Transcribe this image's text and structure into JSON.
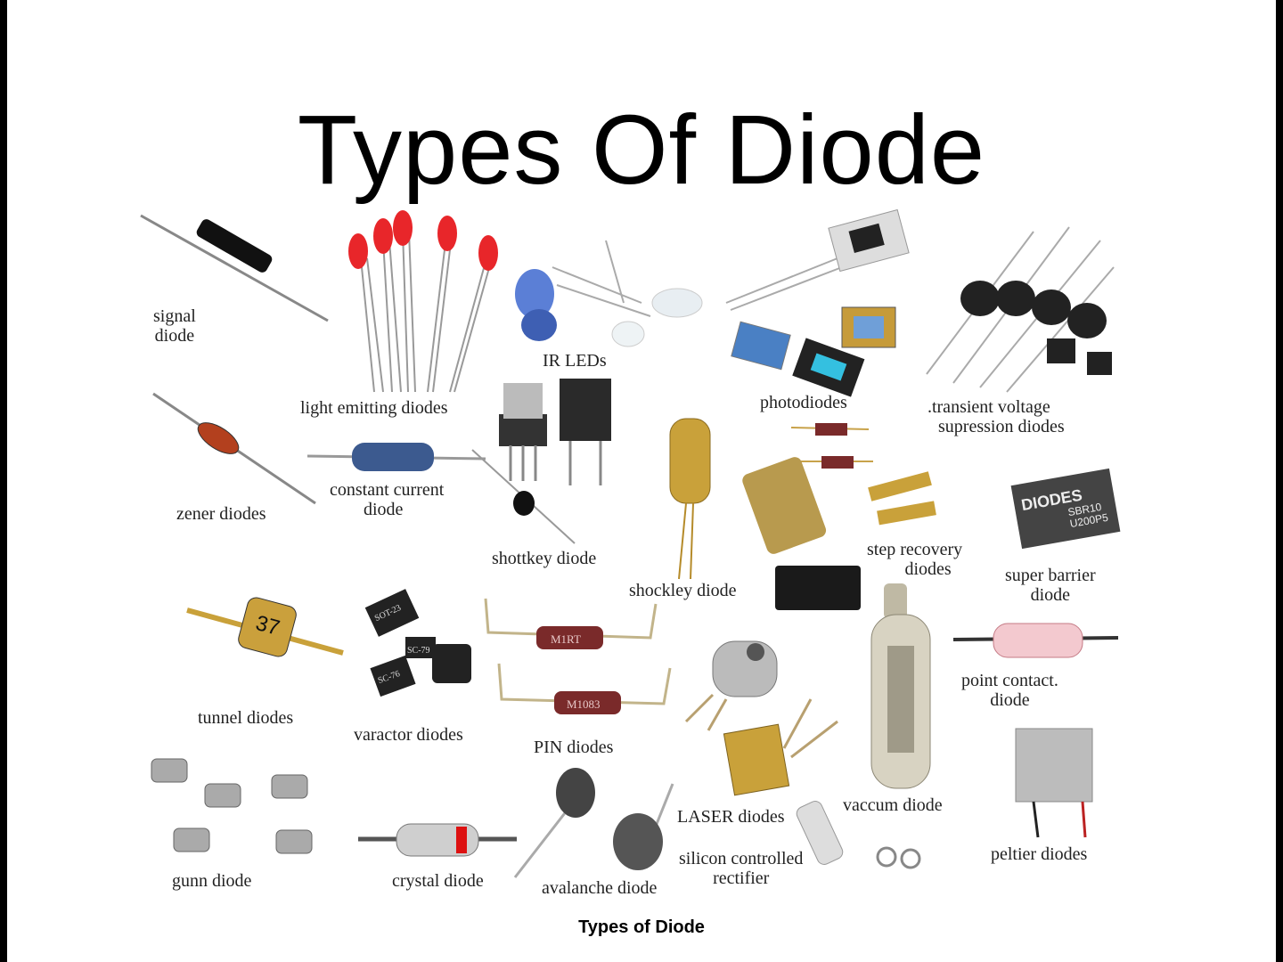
{
  "slide": {
    "title": "Types Of Diode",
    "caption": "Types of Diode"
  },
  "labels": {
    "signal_line1": "signal",
    "signal_line2": "diode",
    "led": "light emitting diodes",
    "ir_leds": "IR LEDs",
    "photodiodes": "photodiodes",
    "tvs_line1": ".transient  voltage",
    "tvs_line2": "supression diodes",
    "zener": "zener diodes",
    "ccd_line1": "constant current",
    "ccd_line2": "diode",
    "schottky": "shottkey  diode",
    "shockley": "shockley  diode",
    "step_line1": "step  recovery",
    "step_line2": "diodes",
    "superbarrier_line1": "super barrier",
    "superbarrier_line2": "diode",
    "tunnel": "tunnel  diodes",
    "varactor": "varactor diodes",
    "pin": "PIN diodes",
    "pointcontact_line1": "point contact.",
    "pointcontact_line2": "diode",
    "laser": "LASER diodes",
    "vacuum": "vaccum diode",
    "scr_line1": "silicon controlled",
    "scr_line2": "rectifier",
    "peltier": "peltier diodes",
    "gunn": "gunn diode",
    "crystal": "crystal diode",
    "avalanche": "avalanche diode"
  },
  "component_markings": {
    "tunnel_diode": "37",
    "superbarrier_brand": "DIODES",
    "superbarrier_part1": "SBR10",
    "superbarrier_part2": "U200P5",
    "pin_1": "M1RT",
    "pin_2": "M1083",
    "varactor_1": "SOT-23",
    "varactor_2": "SC-79",
    "varactor_3": "SC-76"
  },
  "colors": {
    "background": "#000000",
    "sheet": "#ffffff",
    "led_red": "#e8262a",
    "ir_blue": "#5b7fd6",
    "gold": "#c9a13a",
    "maroon": "#7a2a2a"
  }
}
